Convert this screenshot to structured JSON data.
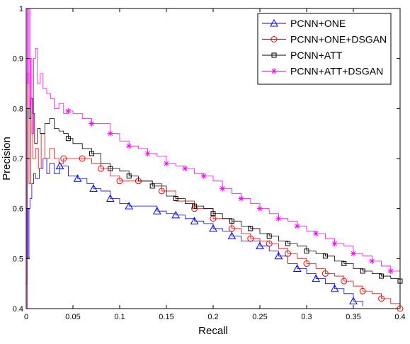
{
  "chart_data": {
    "type": "line",
    "title": "",
    "xlabel": "Recall",
    "ylabel": "Precision",
    "xlim": [
      0,
      0.4
    ],
    "ylim": [
      0.4,
      1
    ],
    "x_ticks": [
      "0",
      "0.05",
      "0.1",
      "0.15",
      "0.2",
      "0.25",
      "0.3",
      "0.35",
      "0.4"
    ],
    "y_ticks": [
      "0.4",
      "0.5",
      "0.6",
      "0.7",
      "0.8",
      "0.9",
      "1"
    ],
    "grid": false,
    "legend_position": "top-right",
    "series": [
      {
        "name": "PCNN+ONE",
        "color": "#0000ff",
        "marker": "triangle",
        "x": [
          0.0,
          0.001,
          0.002,
          0.003,
          0.004,
          0.006,
          0.008,
          0.01,
          0.014,
          0.018,
          0.022,
          0.025,
          0.03,
          0.036,
          0.045,
          0.055,
          0.065,
          0.072,
          0.08,
          0.09,
          0.1,
          0.11,
          0.125,
          0.14,
          0.15,
          0.16,
          0.17,
          0.18,
          0.19,
          0.2,
          0.21,
          0.22,
          0.23,
          0.25,
          0.26,
          0.27,
          0.28,
          0.29,
          0.3,
          0.31,
          0.32,
          0.33,
          0.34,
          0.35,
          0.36
        ],
        "y": [
          0.5,
          0.6,
          0.5,
          0.6,
          0.62,
          0.65,
          0.67,
          0.66,
          0.68,
          0.7,
          0.67,
          0.69,
          0.67,
          0.685,
          0.665,
          0.66,
          0.65,
          0.64,
          0.635,
          0.62,
          0.61,
          0.605,
          0.605,
          0.595,
          0.59,
          0.587,
          0.58,
          0.575,
          0.57,
          0.56,
          0.555,
          0.545,
          0.535,
          0.525,
          0.515,
          0.505,
          0.49,
          0.48,
          0.47,
          0.46,
          0.45,
          0.44,
          0.43,
          0.415,
          0.405
        ]
      },
      {
        "name": "PCNN+ONE+DSGAN",
        "color": "#ff0000",
        "marker": "circle",
        "x": [
          0.0,
          0.001,
          0.003,
          0.005,
          0.007,
          0.01,
          0.013,
          0.016,
          0.02,
          0.025,
          0.03,
          0.035,
          0.04,
          0.05,
          0.06,
          0.07,
          0.08,
          0.09,
          0.1,
          0.11,
          0.12,
          0.135,
          0.145,
          0.16,
          0.18,
          0.2,
          0.22,
          0.23,
          0.24,
          0.25,
          0.26,
          0.27,
          0.28,
          0.29,
          0.3,
          0.31,
          0.32,
          0.33,
          0.34,
          0.35,
          0.36,
          0.37,
          0.38,
          0.39,
          0.4
        ],
        "y": [
          0.45,
          0.87,
          0.65,
          0.82,
          0.7,
          0.72,
          0.68,
          0.75,
          0.7,
          0.72,
          0.7,
          0.69,
          0.7,
          0.7,
          0.7,
          0.69,
          0.68,
          0.665,
          0.655,
          0.655,
          0.655,
          0.65,
          0.635,
          0.615,
          0.6,
          0.58,
          0.56,
          0.55,
          0.54,
          0.535,
          0.53,
          0.52,
          0.51,
          0.5,
          0.49,
          0.48,
          0.47,
          0.465,
          0.455,
          0.445,
          0.435,
          0.43,
          0.42,
          0.41,
          0.4
        ]
      },
      {
        "name": "PCNN+ATT",
        "color": "#000000",
        "marker": "square",
        "x": [
          0.0,
          0.001,
          0.003,
          0.005,
          0.007,
          0.009,
          0.012,
          0.015,
          0.02,
          0.025,
          0.03,
          0.035,
          0.04,
          0.045,
          0.05,
          0.06,
          0.07,
          0.08,
          0.09,
          0.1,
          0.11,
          0.12,
          0.135,
          0.15,
          0.16,
          0.17,
          0.18,
          0.19,
          0.2,
          0.21,
          0.22,
          0.23,
          0.24,
          0.25,
          0.26,
          0.27,
          0.28,
          0.29,
          0.3,
          0.31,
          0.32,
          0.33,
          0.34,
          0.35,
          0.36,
          0.37,
          0.38,
          0.39,
          0.4
        ],
        "y": [
          0.4,
          0.8,
          0.78,
          0.82,
          0.79,
          0.73,
          0.76,
          0.75,
          0.77,
          0.78,
          0.76,
          0.755,
          0.75,
          0.74,
          0.73,
          0.72,
          0.71,
          0.69,
          0.68,
          0.675,
          0.665,
          0.655,
          0.645,
          0.625,
          0.62,
          0.61,
          0.605,
          0.6,
          0.59,
          0.58,
          0.575,
          0.565,
          0.56,
          0.55,
          0.545,
          0.535,
          0.53,
          0.525,
          0.515,
          0.51,
          0.505,
          0.495,
          0.49,
          0.48,
          0.475,
          0.47,
          0.465,
          0.46,
          0.455
        ]
      },
      {
        "name": "PCNN+ATT+DSGAN",
        "color": "#ff00ff",
        "marker": "star",
        "x": [
          0.0,
          0.001,
          0.002,
          0.003,
          0.004,
          0.005,
          0.006,
          0.008,
          0.01,
          0.012,
          0.015,
          0.018,
          0.022,
          0.026,
          0.03,
          0.035,
          0.04,
          0.045,
          0.05,
          0.06,
          0.07,
          0.08,
          0.09,
          0.1,
          0.11,
          0.12,
          0.13,
          0.14,
          0.15,
          0.16,
          0.17,
          0.18,
          0.19,
          0.2,
          0.21,
          0.22,
          0.23,
          0.24,
          0.25,
          0.26,
          0.27,
          0.28,
          0.29,
          0.3,
          0.31,
          0.32,
          0.33,
          0.34,
          0.35,
          0.36,
          0.37,
          0.38,
          0.39,
          0.4
        ],
        "y": [
          0.4,
          1.0,
          0.85,
          1.0,
          0.8,
          0.9,
          0.75,
          0.9,
          0.92,
          0.85,
          0.87,
          0.84,
          0.83,
          0.82,
          0.8,
          0.81,
          0.79,
          0.795,
          0.79,
          0.78,
          0.77,
          0.77,
          0.75,
          0.735,
          0.725,
          0.72,
          0.71,
          0.705,
          0.69,
          0.685,
          0.68,
          0.67,
          0.665,
          0.655,
          0.64,
          0.63,
          0.62,
          0.61,
          0.6,
          0.59,
          0.58,
          0.575,
          0.565,
          0.555,
          0.55,
          0.54,
          0.53,
          0.525,
          0.51,
          0.505,
          0.495,
          0.485,
          0.475,
          0.465
        ]
      }
    ]
  }
}
